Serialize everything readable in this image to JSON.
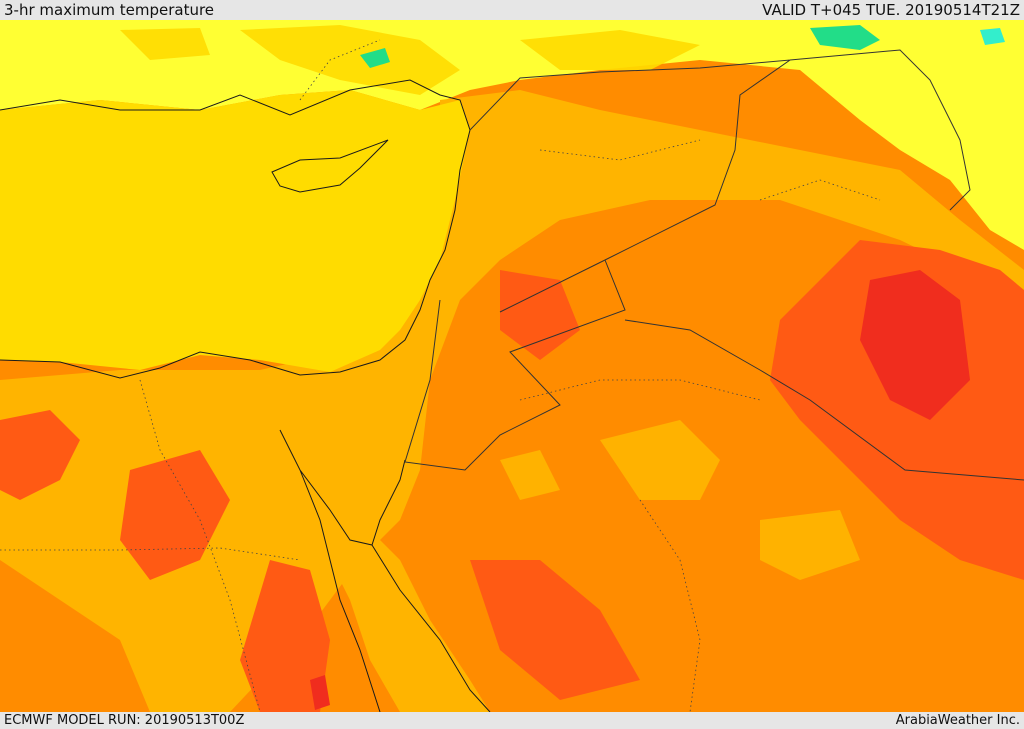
{
  "header": {
    "field_title": "3-hr maximum temperature",
    "valid_time": "VALID T+045 TUE. 20190514T21Z"
  },
  "footer": {
    "model_run": "ECMWF MODEL RUN: 20190513T00Z",
    "provider": "ArabiaWeather Inc."
  },
  "palette": {
    "band_15": "#ffff33",
    "band_20": "#ffdc00",
    "band_25": "#ffb400",
    "band_30": "#ff8c00",
    "band_35": "#ff5a14",
    "band_40": "#f02d1e",
    "band_cool": "#22dd88",
    "band_cooler": "#33eecc",
    "coastline": "#1a1a1a",
    "border": "#333333"
  }
}
